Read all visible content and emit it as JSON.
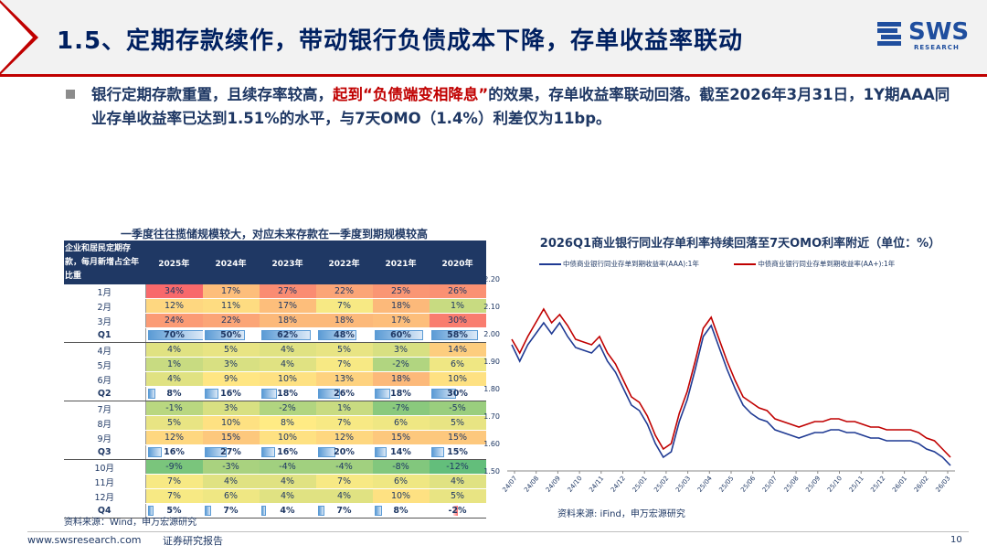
{
  "slide": {
    "title": "1.5、定期存款续作，带动银行负债成本下降，存单收益率联动",
    "page_number": "10",
    "footer_url": "www.swsresearch.com",
    "footer_label": "证券研究报告"
  },
  "logo": {
    "name": "SWS",
    "subtitle": "RESEARCH"
  },
  "bullet": {
    "part1": "银行定期存款重置，且续存率较高，",
    "part2": "起到“负债端变相降息”",
    "part3": "的效果，存单收益率联动回落。截至2026年3月31日，1Y期AAA同业存单收益率已达到1.51%的水平，与7天OMO（1.4%）利差仅为11bp。"
  },
  "table": {
    "title": "一季度往往揽储规模较大，对应未来存款在一季度到期规模较高",
    "corner_label": "企业和居民定期存款，每月新增占全年比重",
    "columns": [
      "2025年",
      "2024年",
      "2023年",
      "2022年",
      "2021年",
      "2020年"
    ],
    "rows": [
      {
        "label": "1月",
        "values": [
          "34%",
          "17%",
          "27%",
          "22%",
          "25%",
          "26%"
        ],
        "q": false
      },
      {
        "label": "2月",
        "values": [
          "12%",
          "11%",
          "17%",
          "7%",
          "18%",
          "1%"
        ],
        "q": false
      },
      {
        "label": "3月",
        "values": [
          "24%",
          "22%",
          "18%",
          "18%",
          "17%",
          "30%"
        ],
        "q": false
      },
      {
        "label": "Q1",
        "values": [
          "70%",
          "50%",
          "62%",
          "48%",
          "60%",
          "58%"
        ],
        "q": true
      },
      {
        "label": "4月",
        "values": [
          "4%",
          "5%",
          "4%",
          "5%",
          "3%",
          "14%"
        ],
        "q": false
      },
      {
        "label": "5月",
        "values": [
          "1%",
          "3%",
          "4%",
          "7%",
          "-2%",
          "6%"
        ],
        "q": false
      },
      {
        "label": "6月",
        "values": [
          "4%",
          "9%",
          "10%",
          "13%",
          "18%",
          "10%"
        ],
        "q": false
      },
      {
        "label": "Q2",
        "values": [
          "8%",
          "16%",
          "18%",
          "26%",
          "18%",
          "30%"
        ],
        "q": true
      },
      {
        "label": "7月",
        "values": [
          "-1%",
          "3%",
          "-2%",
          "1%",
          "-7%",
          "-5%"
        ],
        "q": false
      },
      {
        "label": "8月",
        "values": [
          "5%",
          "10%",
          "8%",
          "7%",
          "6%",
          "5%"
        ],
        "q": false
      },
      {
        "label": "9月",
        "values": [
          "12%",
          "15%",
          "10%",
          "12%",
          "15%",
          "15%"
        ],
        "q": false
      },
      {
        "label": "Q3",
        "values": [
          "16%",
          "27%",
          "16%",
          "20%",
          "14%",
          "15%"
        ],
        "q": true
      },
      {
        "label": "10月",
        "values": [
          "-9%",
          "-3%",
          "-4%",
          "-4%",
          "-8%",
          "-12%"
        ],
        "q": false
      },
      {
        "label": "11月",
        "values": [
          "7%",
          "4%",
          "4%",
          "7%",
          "6%",
          "4%"
        ],
        "q": false
      },
      {
        "label": "12月",
        "values": [
          "7%",
          "6%",
          "4%",
          "4%",
          "10%",
          "5%"
        ],
        "q": false
      },
      {
        "label": "Q4",
        "values": [
          "5%",
          "7%",
          "4%",
          "7%",
          "8%",
          "-2%"
        ],
        "q": true
      }
    ],
    "source": "资料来源：Wind，申万宏源研究",
    "colors": {
      "high": "#f8696b",
      "mid": "#ffeb84",
      "low": "#63be7b"
    }
  },
  "chart_data": {
    "type": "line",
    "title": "2026Q1商业银行同业存单利率持续回落至7天OMO利率附近（单位：%）",
    "ylim": [
      1.5,
      2.2
    ],
    "yticks": [
      "1.50",
      "1.60",
      "1.70",
      "1.80",
      "1.90",
      "2.00",
      "2.10",
      "2.20"
    ],
    "x_ticks": [
      "24/07",
      "24/08",
      "24/09",
      "24/10",
      "24/11",
      "24/12",
      "25/01",
      "25/02",
      "25/03",
      "25/04",
      "25/05",
      "25/06",
      "25/07",
      "25/08",
      "25/09",
      "25/10",
      "25/11",
      "25/12",
      "26/01",
      "26/02",
      "26/03"
    ],
    "series": [
      {
        "name": "中债商业银行同业存单到期收益率(AAA):1年",
        "color": "#1f3a93",
        "values": [
          1.96,
          1.9,
          1.96,
          2.0,
          2.04,
          2.0,
          2.04,
          1.99,
          1.95,
          1.94,
          1.93,
          1.96,
          1.9,
          1.86,
          1.8,
          1.74,
          1.72,
          1.67,
          1.6,
          1.55,
          1.57,
          1.68,
          1.76,
          1.87,
          1.99,
          2.03,
          1.95,
          1.87,
          1.8,
          1.74,
          1.71,
          1.69,
          1.68,
          1.65,
          1.64,
          1.63,
          1.62,
          1.63,
          1.64,
          1.64,
          1.65,
          1.65,
          1.64,
          1.64,
          1.63,
          1.62,
          1.62,
          1.61,
          1.61,
          1.61,
          1.61,
          1.6,
          1.58,
          1.57,
          1.55,
          1.52
        ]
      },
      {
        "name": "中债商业银行同业存单到期收益率(AA+):1年",
        "color": "#c00000",
        "values": [
          1.98,
          1.93,
          1.99,
          2.04,
          2.09,
          2.04,
          2.07,
          2.03,
          1.98,
          1.97,
          1.96,
          1.99,
          1.93,
          1.89,
          1.83,
          1.77,
          1.75,
          1.7,
          1.63,
          1.58,
          1.6,
          1.71,
          1.79,
          1.9,
          2.02,
          2.06,
          1.98,
          1.9,
          1.83,
          1.77,
          1.75,
          1.73,
          1.72,
          1.69,
          1.68,
          1.67,
          1.66,
          1.67,
          1.68,
          1.68,
          1.69,
          1.69,
          1.68,
          1.68,
          1.67,
          1.66,
          1.66,
          1.65,
          1.65,
          1.65,
          1.65,
          1.64,
          1.62,
          1.61,
          1.58,
          1.55
        ]
      }
    ],
    "source": "资料来源: iFind，申万宏源研究"
  }
}
